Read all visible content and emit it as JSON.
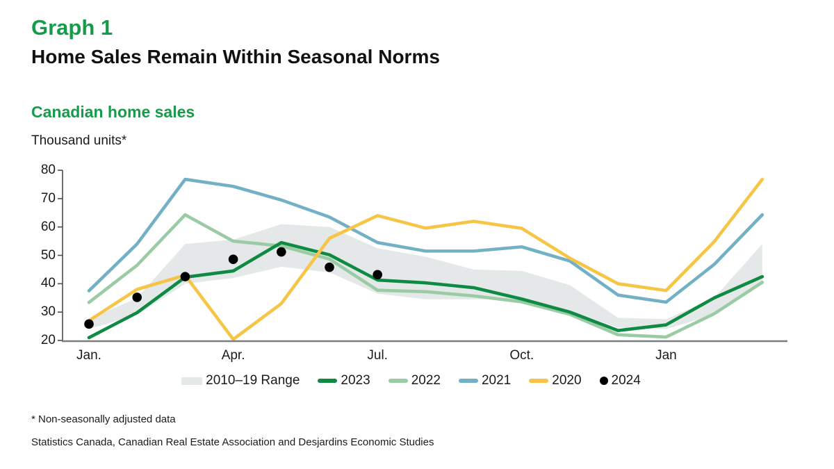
{
  "header": {
    "graph_label": "Graph 1",
    "title": "Home Sales Remain Within Seasonal Norms"
  },
  "chart_header": {
    "subtitle": "Canadian home sales",
    "units_label": "Thousand units*"
  },
  "colors": {
    "title_green": "#169b4a",
    "text": "#1a1a1a",
    "axis": "#4c4c4c",
    "baseline": "#7d7d7d"
  },
  "chart_data": {
    "type": "line",
    "title": "Canadian home sales",
    "ylabel": "Thousand units*",
    "ylim": [
      20,
      80
    ],
    "y_ticks": [
      20,
      30,
      40,
      50,
      60,
      70,
      80
    ],
    "grid": false,
    "n_points": 15,
    "x_tick_labels": [
      {
        "index": 0,
        "label": "Jan."
      },
      {
        "index": 3,
        "label": "Apr."
      },
      {
        "index": 6,
        "label": "Jul."
      },
      {
        "index": 9,
        "label": "Oct."
      },
      {
        "index": 12,
        "label": "Jan"
      }
    ],
    "band": {
      "name": "2010–19 Range",
      "color": "#e4e8e9",
      "lower": [
        24,
        29,
        40,
        42,
        46,
        44,
        36.5,
        34.5,
        34.5,
        34.5,
        30.5,
        24.5,
        24,
        29,
        40
      ],
      "upper": [
        27.5,
        35,
        54,
        55.5,
        61,
        60,
        52.5,
        49.5,
        45,
        44.5,
        39.5,
        28,
        27.5,
        35,
        54
      ]
    },
    "series": [
      {
        "name": "2023",
        "color": "#0e8a43",
        "values": [
          21,
          29.8,
          42.3,
          44.5,
          54.5,
          50.2,
          41.3,
          40.3,
          38.6,
          34.6,
          30,
          23.5,
          25.5,
          35,
          42.5
        ]
      },
      {
        "name": "2022",
        "color": "#9bcba4",
        "values": [
          33.4,
          46.5,
          64.3,
          55,
          53.3,
          48.7,
          37.7,
          37.2,
          35.7,
          33.6,
          29.2,
          22,
          21.2,
          29.4,
          40.5
        ]
      },
      {
        "name": "2021",
        "color": "#72b0c5",
        "values": [
          37.5,
          54,
          76.8,
          74.3,
          69.5,
          63.5,
          54.5,
          51.5,
          51.5,
          53,
          48,
          36,
          33.5,
          46.8,
          64.3
        ]
      },
      {
        "name": "2020",
        "color": "#f6c545",
        "values": [
          27,
          38,
          43,
          20.4,
          33,
          56,
          64,
          59.6,
          62,
          59.5,
          49,
          40,
          37.6,
          54.8,
          76.8
        ]
      }
    ],
    "draw_order": [
      1,
      0,
      2,
      3
    ],
    "dots": {
      "name": "2024",
      "color": "#000000",
      "values": [
        25.8,
        35.2,
        42.5,
        48.6,
        51.2,
        45.8,
        43.2
      ]
    },
    "legend_position": "bottom"
  },
  "footnotes": {
    "line1": "* Non-seasonally adjusted data",
    "line2": "Statistics Canada, Canadian Real Estate Association and Desjardins Economic Studies"
  }
}
